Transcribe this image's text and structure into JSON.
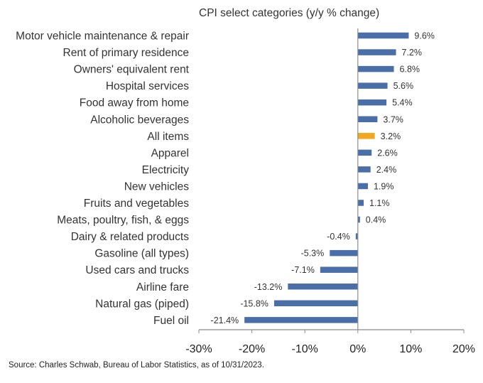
{
  "chart_data": {
    "type": "bar",
    "orientation": "horizontal",
    "title": "CPI select categories (y/y % change)",
    "categories": [
      "Motor vehicle maintenance & repair",
      "Rent of primary residence",
      "Owners' equivalent rent",
      "Hospital services",
      "Food away from home",
      "Alcoholic beverages",
      "All items",
      "Apparel",
      "Electricity",
      "New vehicles",
      "Fruits and vegetables",
      "Meats, poultry, fish, & eggs",
      "Dairy & related products",
      "Gasoline (all types)",
      "Used cars and trucks",
      "Airline fare",
      "Natural gas (piped)",
      "Fuel oil"
    ],
    "values": [
      9.6,
      7.2,
      6.8,
      5.6,
      5.4,
      3.7,
      3.2,
      2.6,
      2.4,
      1.9,
      1.1,
      0.4,
      -0.4,
      -5.3,
      -7.1,
      -13.2,
      -15.8,
      -21.4
    ],
    "data_labels": [
      "9.6%",
      "7.2%",
      "6.8%",
      "5.6%",
      "5.4%",
      "3.7%",
      "3.2%",
      "2.6%",
      "2.4%",
      "1.9%",
      "1.1%",
      "0.4%",
      "-0.4%",
      "-5.3%",
      "-7.1%",
      "-13.2%",
      "-15.8%",
      "-21.4%"
    ],
    "highlight_index": 6,
    "xlim": [
      -30,
      20
    ],
    "xticks": [
      -30,
      -20,
      -10,
      0,
      10,
      20
    ],
    "xtick_labels": [
      "-30%",
      "-20%",
      "-10%",
      "0%",
      "10%",
      "20%"
    ],
    "xlabel": "",
    "ylabel": "",
    "colors": {
      "bar": "#4a6fa8",
      "highlight": "#f2a81d",
      "axis": "#8c8c8c",
      "label": "#333333"
    }
  },
  "footer": {
    "source": "Source: Charles Schwab, Bureau of Labor Statistics, as of 10/31/2023."
  }
}
